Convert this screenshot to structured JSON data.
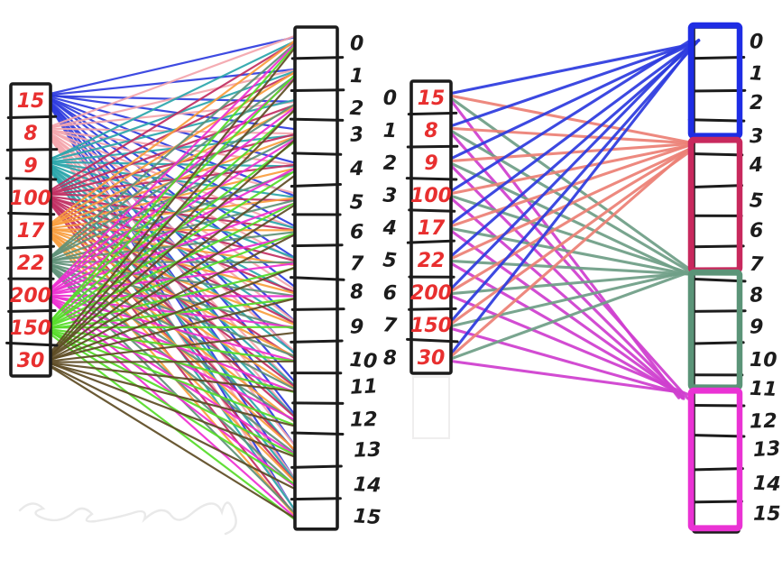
{
  "palette": {
    "ink": "#1c1c1c",
    "value_red": "#e82f2f",
    "background": "#ffffff",
    "erased_gray": "#e3e3e3"
  },
  "left_diagram": {
    "description": "every source element connected to every output slot",
    "source_array": {
      "values": [
        "15",
        "8",
        "9",
        "100",
        "17",
        "22",
        "200",
        "150",
        "30"
      ],
      "fan_colors": [
        "#2e3cdf",
        "#f4a6ad",
        "#2ba6ab",
        "#c22e62",
        "#f99e3d",
        "#5f9178",
        "#ee2fd2",
        "#55dc28",
        "#5e4c24"
      ]
    },
    "dest_array": {
      "indices": [
        "0",
        "1",
        "2",
        "3",
        "4",
        "5",
        "6",
        "7",
        "8",
        "9",
        "10",
        "11",
        "12",
        "13",
        "14",
        "15"
      ]
    }
  },
  "right_diagram": {
    "description": "each source element connected to four bucket anchor points",
    "source_array": {
      "indices": [
        "0",
        "1",
        "2",
        "3",
        "4",
        "5",
        "6",
        "7",
        "8"
      ],
      "values": [
        "15",
        "8",
        "9",
        "100",
        "17",
        "22",
        "200",
        "150",
        "30"
      ]
    },
    "dest_array": {
      "indices": [
        "0",
        "1",
        "2",
        "3",
        "4",
        "5",
        "6",
        "7",
        "8",
        "9",
        "10",
        "11",
        "12",
        "13",
        "14",
        "15"
      ]
    },
    "connector_colors": [
      "#2e3cdf",
      "#ec8176",
      "#6f9f87",
      "#cf3fcf"
    ],
    "buckets": [
      {
        "label": "bucket-0-3",
        "color": "#1f2de4",
        "start_index": 0,
        "end_index": 3
      },
      {
        "label": "bucket-4-7",
        "color": "#c8295e",
        "start_index": 4,
        "end_index": 7
      },
      {
        "label": "bucket-8-11",
        "color": "#5b9478",
        "start_index": 8,
        "end_index": 11
      },
      {
        "label": "bucket-12-15",
        "color": "#ea33d4",
        "start_index": 12,
        "end_index": 15
      }
    ]
  }
}
